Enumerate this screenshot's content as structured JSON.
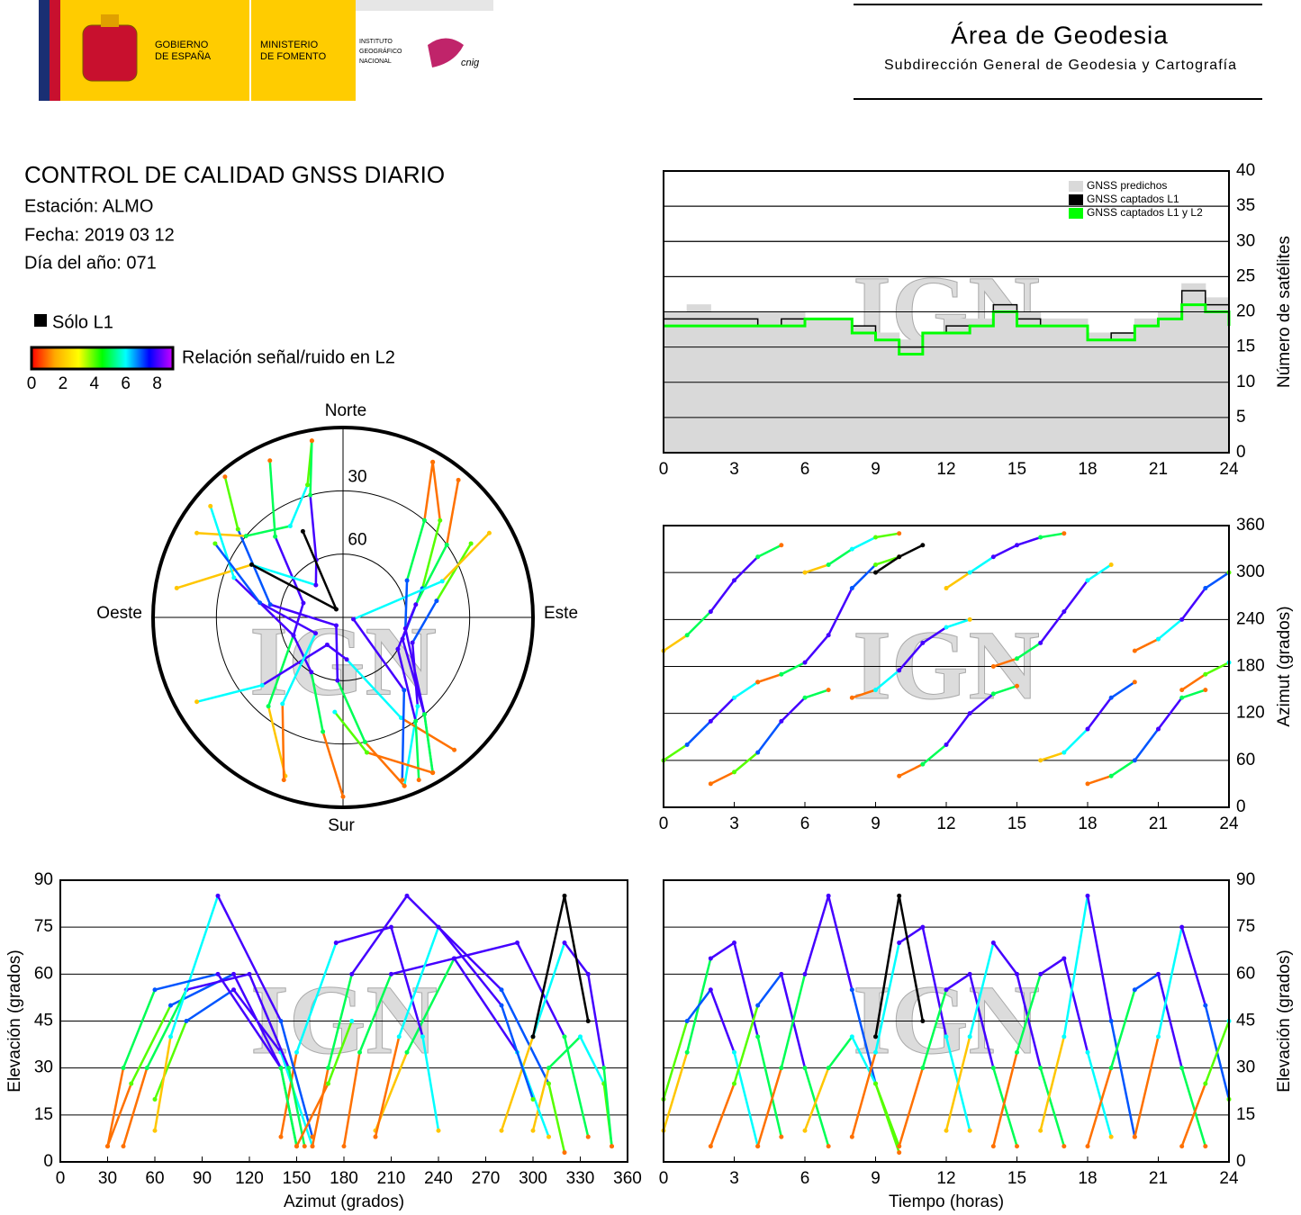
{
  "header": {
    "government": [
      "GOBIERNO",
      "DE ESPAÑA"
    ],
    "ministry": [
      "MINISTERIO",
      "DE FOMENTO"
    ],
    "institute": [
      "INSTITUTO",
      "GEOGRÁFICO",
      "NACIONAL"
    ],
    "cnig": "cnig",
    "area": "Área de Geodesia",
    "subdirection": "Subdirección General de Geodesia y Cartografía"
  },
  "info": {
    "title": "CONTROL DE CALIDAD GNSS DIARIO",
    "station": "Estación: ALMO",
    "date": "Fecha: 2019 03 12",
    "day_of_year": "Día del año: 071"
  },
  "legend": {
    "l1_only": "Sólo L1",
    "l1_only_color": "#000000",
    "snr_label": "Relación señal/ruido en L2",
    "snr_lim": [
      0,
      9
    ],
    "snr_ticks": [
      0,
      2,
      4,
      6,
      8
    ],
    "snr_colors": [
      "#ff0000",
      "#ffaa00",
      "#ffff00",
      "#00ff00",
      "#00ffff",
      "#0000ff",
      "#cc00ff"
    ]
  },
  "watermark": "IGN",
  "passes": [
    {
      "t": [
        0,
        1,
        2,
        3,
        4,
        5
      ],
      "az": [
        200,
        220,
        250,
        290,
        320,
        335
      ],
      "el": [
        10,
        35,
        65,
        70,
        40,
        8
      ],
      "snr": [
        2,
        5,
        8,
        8,
        5,
        1
      ]
    },
    {
      "t": [
        0,
        1,
        2,
        3,
        4
      ],
      "az": [
        60,
        80,
        110,
        140,
        160
      ],
      "el": [
        20,
        45,
        55,
        35,
        5
      ],
      "snr": [
        4,
        7,
        8,
        6,
        1
      ]
    },
    {
      "t": [
        2,
        3,
        4,
        5,
        6,
        7
      ],
      "az": [
        30,
        45,
        70,
        110,
        140,
        150
      ],
      "el": [
        5,
        25,
        50,
        60,
        30,
        5
      ],
      "snr": [
        1,
        4,
        7,
        8,
        5,
        1
      ]
    },
    {
      "t": [
        4,
        5,
        6,
        7,
        8,
        9,
        10
      ],
      "az": [
        160,
        170,
        185,
        220,
        280,
        310,
        320
      ],
      "el": [
        5,
        30,
        60,
        85,
        55,
        25,
        3
      ],
      "snr": [
        1,
        5,
        8,
        8,
        7,
        4,
        1
      ]
    },
    {
      "t": [
        6,
        7,
        8,
        9,
        10
      ],
      "az": [
        300,
        310,
        330,
        345,
        350
      ],
      "el": [
        10,
        30,
        40,
        25,
        5
      ],
      "snr": [
        2,
        5,
        6,
        4,
        1
      ]
    },
    {
      "t": [
        8,
        9,
        10,
        11,
        12,
        13
      ],
      "az": [
        140,
        150,
        175,
        210,
        230,
        240
      ],
      "el": [
        8,
        35,
        70,
        75,
        40,
        10
      ],
      "snr": [
        1,
        6,
        8,
        8,
        6,
        2
      ]
    },
    {
      "t": [
        10,
        11,
        12,
        13,
        14,
        15
      ],
      "az": [
        40,
        55,
        80,
        120,
        145,
        155
      ],
      "el": [
        5,
        30,
        55,
        60,
        30,
        5
      ],
      "snr": [
        1,
        5,
        8,
        8,
        5,
        1
      ]
    },
    {
      "t": [
        12,
        13,
        14,
        15,
        16,
        17
      ],
      "az": [
        280,
        300,
        320,
        335,
        345,
        350
      ],
      "el": [
        10,
        40,
        70,
        60,
        30,
        5
      ],
      "snr": [
        2,
        6,
        8,
        8,
        5,
        1
      ]
    },
    {
      "t": [
        14,
        15,
        16,
        17,
        18,
        19
      ],
      "az": [
        180,
        190,
        210,
        250,
        290,
        310
      ],
      "el": [
        5,
        35,
        60,
        65,
        35,
        8
      ],
      "snr": [
        1,
        5,
        8,
        8,
        6,
        2
      ]
    },
    {
      "t": [
        16,
        17,
        18,
        19,
        20
      ],
      "az": [
        60,
        70,
        100,
        140,
        160
      ],
      "el": [
        10,
        40,
        85,
        45,
        8
      ],
      "snr": [
        2,
        6,
        8,
        7,
        1
      ]
    },
    {
      "t": [
        18,
        19,
        20,
        21,
        22,
        23
      ],
      "az": [
        30,
        40,
        60,
        100,
        140,
        150
      ],
      "el": [
        5,
        30,
        55,
        60,
        30,
        5
      ],
      "snr": [
        1,
        5,
        7,
        8,
        5,
        1
      ]
    },
    {
      "t": [
        20,
        21,
        22,
        23,
        24
      ],
      "az": [
        200,
        215,
        240,
        280,
        300
      ],
      "el": [
        8,
        40,
        75,
        50,
        20
      ],
      "snr": [
        1,
        6,
        8,
        7,
        4
      ]
    },
    {
      "t": [
        9,
        10,
        11
      ],
      "az": [
        300,
        320,
        335
      ],
      "el": [
        40,
        85,
        45
      ],
      "snr": [
        null,
        null,
        null
      ]
    },
    {
      "t": [
        22,
        23,
        24
      ],
      "az": [
        150,
        170,
        185
      ],
      "el": [
        5,
        25,
        45
      ],
      "snr": [
        1,
        4,
        6
      ]
    }
  ],
  "chart_data": [
    {
      "type": "step",
      "ylabel": "Número de satélites",
      "yaxis_side": "right",
      "x": [
        0,
        1,
        2,
        3,
        4,
        5,
        6,
        7,
        8,
        9,
        10,
        11,
        12,
        13,
        14,
        15,
        16,
        17,
        18,
        19,
        20,
        21,
        22,
        23,
        24
      ],
      "series": [
        {
          "name": "GNSS predichos",
          "color": "#d9d9d9",
          "fill": true,
          "values": [
            20,
            21,
            20,
            20,
            20,
            20,
            19,
            19,
            18,
            17,
            16,
            17,
            19,
            19,
            21,
            20,
            19,
            19,
            17,
            17,
            19,
            20,
            24,
            22,
            20
          ]
        },
        {
          "name": "GNSS captados L1",
          "color": "#000000",
          "values": [
            19,
            19,
            19,
            19,
            18,
            19,
            19,
            19,
            18,
            16,
            15,
            17,
            18,
            18,
            21,
            19,
            18,
            18,
            16,
            17,
            18,
            19,
            23,
            21,
            19
          ]
        },
        {
          "name": "GNSS captados L1 y L2",
          "color": "#00ff00",
          "values": [
            18,
            18,
            18,
            18,
            18,
            18,
            19,
            19,
            17,
            16,
            14,
            17,
            17,
            18,
            20,
            18,
            18,
            18,
            16,
            16,
            18,
            19,
            21,
            20,
            18
          ]
        }
      ],
      "xlim": [
        0,
        24
      ],
      "xticks": [
        0,
        3,
        6,
        9,
        12,
        15,
        18,
        21,
        24
      ],
      "ylim": [
        0,
        40
      ],
      "yticks": [
        0,
        5,
        10,
        15,
        20,
        25,
        30,
        35,
        40
      ],
      "grid": true
    },
    {
      "type": "polar",
      "labels": {
        "north": "Norte",
        "south": "Sur",
        "east": "Este",
        "west": "Oeste"
      },
      "rlim": [
        90,
        0
      ],
      "rticks": [
        30,
        60
      ]
    },
    {
      "type": "track",
      "x_field": "t",
      "y_field": "az",
      "ylabel": "Azimut (grados)",
      "yaxis_side": "right",
      "xlim": [
        0,
        24
      ],
      "xticks": [
        0,
        3,
        6,
        9,
        12,
        15,
        18,
        21,
        24
      ],
      "ylim": [
        0,
        360
      ],
      "yticks": [
        0,
        60,
        120,
        180,
        240,
        300,
        360
      ],
      "grid": true
    },
    {
      "type": "track",
      "x_field": "az",
      "y_field": "el",
      "xlabel": "Azimut (grados)",
      "ylabel": "Elevación (grados)",
      "yaxis_side": "left",
      "xlim": [
        0,
        360
      ],
      "xticks": [
        0,
        30,
        60,
        90,
        120,
        150,
        180,
        210,
        240,
        270,
        300,
        330,
        360
      ],
      "ylim": [
        0,
        90
      ],
      "yticks": [
        0,
        15,
        30,
        45,
        60,
        75,
        90
      ],
      "grid": true
    },
    {
      "type": "track",
      "x_field": "t",
      "y_field": "el",
      "xlabel": "Tiempo (horas)",
      "ylabel": "Elevación (grados)",
      "yaxis_side": "right",
      "xlim": [
        0,
        24
      ],
      "xticks": [
        0,
        3,
        6,
        9,
        12,
        15,
        18,
        21,
        24
      ],
      "ylim": [
        0,
        90
      ],
      "yticks": [
        0,
        15,
        30,
        45,
        60,
        75,
        90
      ],
      "grid": true
    }
  ]
}
